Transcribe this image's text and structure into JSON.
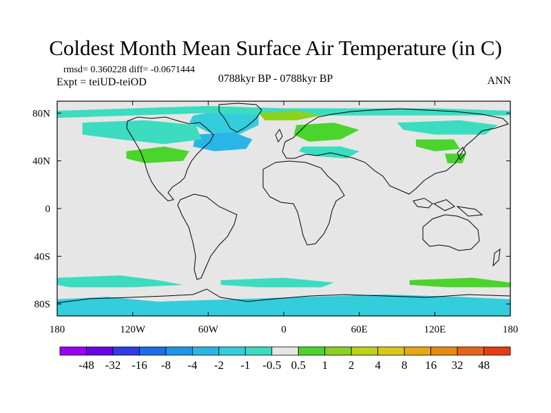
{
  "title": "Coldest Month Mean Surface Air Temperature (in C)",
  "stats": "rmsd= 0.360228 diff= -0.0671444",
  "experiment": "Expt = teiUD-teiOD",
  "period": "0788kyr BP - 0788kyr BP",
  "season": "ANN",
  "map": {
    "background_color": "#e6e6e6",
    "lon_range": [
      -180,
      180
    ],
    "lat_range": [
      -90,
      90
    ],
    "x_ticks": [
      {
        "lon": -180,
        "label": "180"
      },
      {
        "lon": -120,
        "label": "120W"
      },
      {
        "lon": -60,
        "label": "60W"
      },
      {
        "lon": 0,
        "label": "0"
      },
      {
        "lon": 60,
        "label": "60E"
      },
      {
        "lon": 120,
        "label": "120E"
      },
      {
        "lon": 180,
        "label": "180"
      }
    ],
    "y_ticks": [
      {
        "lat": 80,
        "label": "80N"
      },
      {
        "lat": 40,
        "label": "40N"
      },
      {
        "lat": 0,
        "label": "0"
      },
      {
        "lat": -40,
        "label": "40S"
      },
      {
        "lat": -80,
        "label": "80S"
      }
    ]
  },
  "colorbar": {
    "colors": [
      "#9b00f0",
      "#6a00e6",
      "#2f3ce6",
      "#1c6ee8",
      "#1e96e8",
      "#29b6e6",
      "#33cddc",
      "#3cdcc0",
      "#e6e6e6",
      "#4ad42c",
      "#8ad21e",
      "#bed21a",
      "#d8c818",
      "#e6a814",
      "#e68a12",
      "#e6641a",
      "#e63c14"
    ],
    "labels": [
      "-48",
      "-32",
      "-16",
      "-8",
      "-4",
      "-2",
      "-1",
      "-0.5",
      "0.5",
      "1",
      "2",
      "4",
      "8",
      "16",
      "32",
      "48"
    ]
  },
  "anomalies": [
    {
      "name": "greenland-anomaly",
      "color": "#33cddc",
      "points": [
        [
          -72,
          78
        ],
        [
          -40,
          84
        ],
        [
          -20,
          80
        ],
        [
          -20,
          70
        ],
        [
          -40,
          60
        ],
        [
          -60,
          64
        ],
        [
          -75,
          72
        ]
      ]
    },
    {
      "name": "north-atlantic-anomaly",
      "color": "#29b6e6",
      "points": [
        [
          -70,
          62
        ],
        [
          -40,
          64
        ],
        [
          -25,
          58
        ],
        [
          -30,
          50
        ],
        [
          -55,
          48
        ],
        [
          -72,
          52
        ]
      ]
    },
    {
      "name": "north-america-anomaly",
      "color": "#3cdcc0",
      "points": [
        [
          -160,
          72
        ],
        [
          -110,
          74
        ],
        [
          -70,
          70
        ],
        [
          -65,
          58
        ],
        [
          -95,
          54
        ],
        [
          -130,
          58
        ],
        [
          -160,
          62
        ]
      ]
    },
    {
      "name": "north-america-south-anomaly",
      "color": "#4ad42c",
      "points": [
        [
          -125,
          48
        ],
        [
          -95,
          52
        ],
        [
          -75,
          48
        ],
        [
          -80,
          40
        ],
        [
          -110,
          38
        ],
        [
          -125,
          42
        ]
      ]
    },
    {
      "name": "arctic-anomaly",
      "color": "#3cdcc0",
      "points": [
        [
          -180,
          82
        ],
        [
          -120,
          84
        ],
        [
          -60,
          86
        ],
        [
          0,
          84
        ],
        [
          60,
          84
        ],
        [
          120,
          84
        ],
        [
          180,
          82
        ],
        [
          180,
          78
        ],
        [
          120,
          78
        ],
        [
          60,
          78
        ],
        [
          0,
          78
        ],
        [
          -60,
          80
        ],
        [
          -120,
          78
        ],
        [
          -180,
          76
        ]
      ]
    },
    {
      "name": "svalbard-anomaly",
      "color": "#8ad21e",
      "points": [
        [
          -20,
          80
        ],
        [
          10,
          82
        ],
        [
          30,
          78
        ],
        [
          10,
          74
        ],
        [
          -15,
          74
        ]
      ]
    },
    {
      "name": "scandinavia-anomaly",
      "color": "#4ad42c",
      "points": [
        [
          10,
          70
        ],
        [
          40,
          72
        ],
        [
          60,
          66
        ],
        [
          45,
          58
        ],
        [
          20,
          56
        ],
        [
          8,
          62
        ]
      ]
    },
    {
      "name": "europe-anomaly",
      "color": "#3cdcc0",
      "points": [
        [
          15,
          52
        ],
        [
          45,
          52
        ],
        [
          60,
          48
        ],
        [
          50,
          42
        ],
        [
          25,
          44
        ],
        [
          12,
          48
        ]
      ]
    },
    {
      "name": "siberia-anomaly",
      "color": "#3cdcc0",
      "points": [
        [
          90,
          72
        ],
        [
          140,
          74
        ],
        [
          170,
          70
        ],
        [
          160,
          62
        ],
        [
          120,
          62
        ],
        [
          95,
          66
        ]
      ]
    },
    {
      "name": "asia-anomaly",
      "color": "#4ad42c",
      "points": [
        [
          105,
          58
        ],
        [
          135,
          58
        ],
        [
          140,
          50
        ],
        [
          120,
          48
        ],
        [
          105,
          52
        ]
      ]
    },
    {
      "name": "japan-anomaly",
      "color": "#4ad42c",
      "points": [
        [
          128,
          46
        ],
        [
          145,
          46
        ],
        [
          142,
          38
        ],
        [
          130,
          38
        ]
      ]
    },
    {
      "name": "southern-ocean-anomaly-1",
      "color": "#3cdcc0",
      "points": [
        [
          -180,
          -58
        ],
        [
          -130,
          -56
        ],
        [
          -100,
          -60
        ],
        [
          -80,
          -64
        ],
        [
          -120,
          -66
        ],
        [
          -170,
          -66
        ],
        [
          -180,
          -64
        ]
      ]
    },
    {
      "name": "southern-ocean-anomaly-2",
      "color": "#3cdcc0",
      "points": [
        [
          -50,
          -60
        ],
        [
          0,
          -58
        ],
        [
          40,
          -62
        ],
        [
          30,
          -66
        ],
        [
          -20,
          -66
        ],
        [
          -50,
          -64
        ]
      ]
    },
    {
      "name": "southern-ocean-anomaly-3",
      "color": "#4ad42c",
      "points": [
        [
          100,
          -60
        ],
        [
          150,
          -58
        ],
        [
          180,
          -62
        ],
        [
          180,
          -66
        ],
        [
          130,
          -66
        ],
        [
          100,
          -64
        ]
      ]
    },
    {
      "name": "antarctica-anomaly",
      "color": "#33cddc",
      "points": [
        [
          -180,
          -76
        ],
        [
          -140,
          -74
        ],
        [
          -100,
          -78
        ],
        [
          -40,
          -76
        ],
        [
          20,
          -74
        ],
        [
          80,
          -72
        ],
        [
          140,
          -74
        ],
        [
          180,
          -76
        ],
        [
          180,
          -90
        ],
        [
          -180,
          -90
        ]
      ]
    }
  ]
}
